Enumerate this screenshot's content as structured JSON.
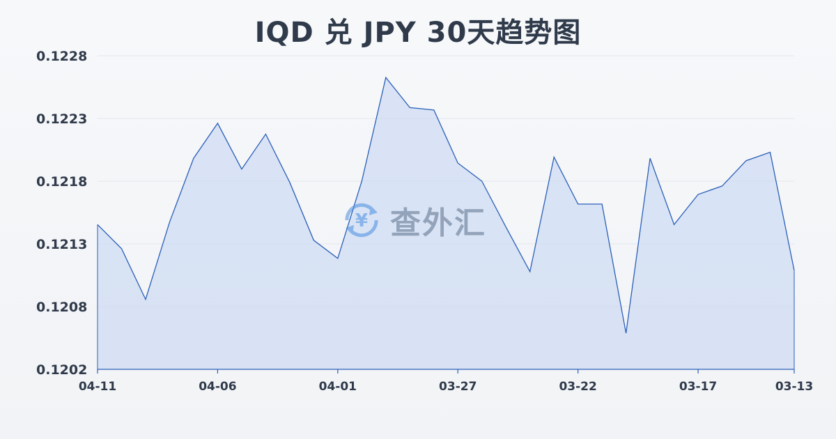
{
  "chart_data": {
    "type": "area",
    "title": "IQD 兑 JPY 30天趋势图",
    "xlabel": "",
    "ylabel": "",
    "ylim": [
      0.1202,
      0.1228
    ],
    "y_ticks": [
      "0.1228",
      "0.1223",
      "0.1218",
      "0.1213",
      "0.1208",
      "0.1202"
    ],
    "x_tick_labels": [
      "04-11",
      "04-06",
      "04-01",
      "03-27",
      "03-22",
      "03-17",
      "03-13"
    ],
    "x": [
      "04-11",
      "04-10",
      "04-09",
      "04-08",
      "04-07",
      "04-06",
      "04-05",
      "04-04",
      "04-03",
      "04-02",
      "04-01",
      "03-31",
      "03-30",
      "03-29",
      "03-28",
      "03-27",
      "03-26",
      "03-25",
      "03-24",
      "03-23",
      "03-22",
      "03-21",
      "03-20",
      "03-19",
      "03-18",
      "03-17",
      "03-16",
      "03-15",
      "03-14",
      "03-13"
    ],
    "values": [
      0.1214,
      0.1212,
      0.12078,
      0.12142,
      0.12195,
      0.12224,
      0.12186,
      0.12215,
      0.12175,
      0.12127,
      0.12112,
      0.12176,
      0.12262,
      0.12237,
      0.12235,
      0.12191,
      0.12176,
      0.12138,
      0.12101,
      0.12196,
      0.12157,
      0.12157,
      0.1205,
      0.12195,
      0.1214,
      0.12165,
      0.12172,
      0.12193,
      0.122,
      0.12102
    ],
    "grid": true,
    "line_color": "#2b5fb8",
    "fill_color": "#c9d8f2"
  },
  "watermark": {
    "text": "查外汇",
    "icon": "yen-exchange-icon",
    "icon_glyph": "¥"
  },
  "colors": {
    "title": "#2f3a4a",
    "grid": "#e3e6eb",
    "axis": "#2b5fb8"
  }
}
